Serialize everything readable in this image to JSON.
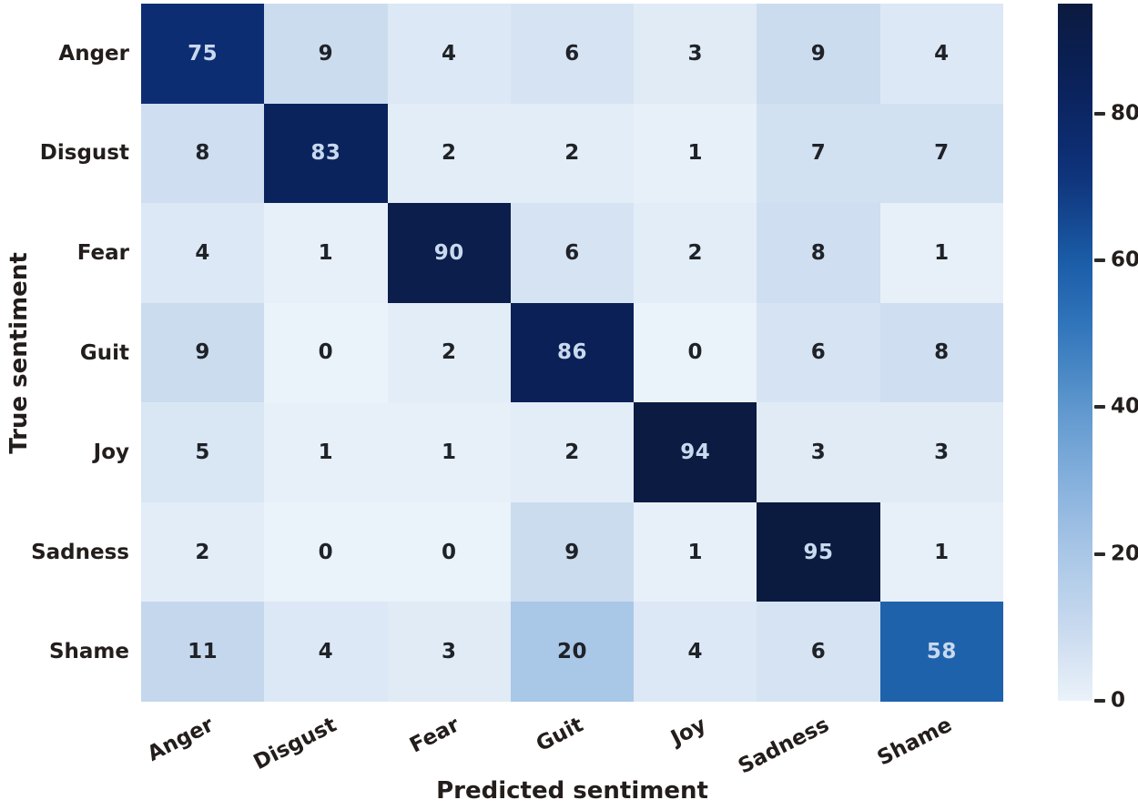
{
  "chart_data": {
    "type": "heatmap",
    "title": "",
    "xlabel": "Predicted sentiment",
    "ylabel": "True sentiment",
    "x_categories": [
      "Anger",
      "Disgust",
      "Fear",
      "Guit",
      "Joy",
      "Sadness",
      "Shame"
    ],
    "y_categories": [
      "Anger",
      "Disgust",
      "Fear",
      "Guit",
      "Joy",
      "Sadness",
      "Shame"
    ],
    "matrix": [
      [
        75,
        9,
        4,
        6,
        3,
        9,
        4
      ],
      [
        8,
        83,
        2,
        2,
        1,
        7,
        7
      ],
      [
        4,
        1,
        90,
        6,
        2,
        8,
        1
      ],
      [
        9,
        0,
        2,
        86,
        0,
        6,
        8
      ],
      [
        5,
        1,
        1,
        2,
        94,
        3,
        3
      ],
      [
        2,
        0,
        0,
        9,
        1,
        95,
        1
      ],
      [
        11,
        4,
        3,
        20,
        4,
        6,
        58
      ]
    ],
    "grid": false,
    "legend_position": "right-colorbar",
    "colorbar": {
      "vmin": 0,
      "vmax": 95,
      "ticks": [
        0,
        20,
        40,
        60,
        80
      ]
    },
    "colormap": {
      "name": "blues-dark",
      "stops": [
        [
          0,
          "#eaf2fa"
        ],
        [
          10,
          "#c8d9ee"
        ],
        [
          20,
          "#a9c7e7"
        ],
        [
          30,
          "#85b0dc"
        ],
        [
          40,
          "#5e97cd"
        ],
        [
          50,
          "#3478bd"
        ],
        [
          60,
          "#1a5ca8"
        ],
        [
          70,
          "#10387f"
        ],
        [
          75,
          "#0d2d72"
        ],
        [
          85,
          "#0a2158"
        ],
        [
          95,
          "#0b1a3f"
        ]
      ]
    },
    "annotation_text_colors": {
      "dark_text": "#1f2227",
      "light_text": "#c9d9ee",
      "light_text_threshold": 50
    }
  }
}
